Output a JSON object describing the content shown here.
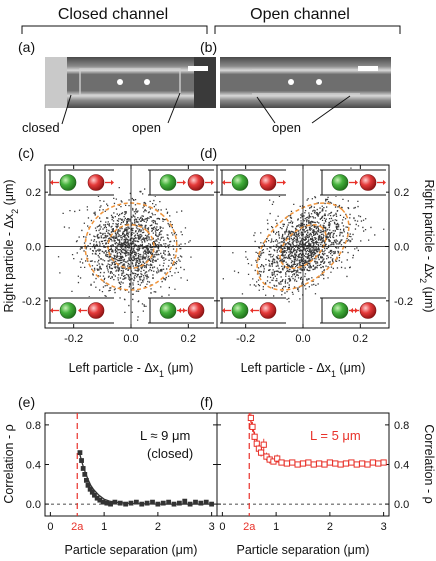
{
  "headers": {
    "left": "Closed channel",
    "right": "Open channel"
  },
  "panel_labels": {
    "a": "(a)",
    "b": "(b)",
    "c": "(c)",
    "d": "(d)",
    "e": "(e)",
    "f": "(f)"
  },
  "image_labels": {
    "closed": "closed",
    "open_a": "open",
    "open_b": "open"
  },
  "colors": {
    "scatter": "#3a3a3a",
    "contour": "#f0943a",
    "closed_data": "#333333",
    "open_data": "#e8322a",
    "dashed_marker": "#e8322a",
    "green_particle": "#43b03b",
    "red_particle": "#e53b3b",
    "arrow": "#e8322a"
  },
  "chart_data": [
    {
      "id": "c",
      "type": "scatter",
      "title": "",
      "xlabel": "Left particle - Δx",
      "xlabel_sub": "1",
      "xlabel_unit": " (μm)",
      "ylabel": "Right particle - Δx",
      "ylabel_sub": "2",
      "ylabel_unit": " (μm)",
      "xlim": [
        -0.3,
        0.3
      ],
      "ylim": [
        -0.3,
        0.3
      ],
      "xticks": [
        -0.2,
        0.0,
        0.2
      ],
      "yticks": [
        -0.2,
        0.0,
        0.2
      ],
      "xtick_labels": [
        "-0.2",
        "0.0",
        "0.2"
      ],
      "ytick_labels": [
        "-0.2",
        "0.0",
        "0.2"
      ],
      "point_count": 1500,
      "std": 0.08,
      "correlation": 0.0,
      "contours_std": [
        1,
        2
      ],
      "insets": [
        "top-left",
        "top-right",
        "bottom-left",
        "bottom-right"
      ]
    },
    {
      "id": "d",
      "type": "scatter",
      "title": "",
      "xlabel": "Left particle - Δx",
      "xlabel_sub": "1",
      "xlabel_unit": " (μm)",
      "ylabel": "Right particle - Δx",
      "ylabel_sub": "2",
      "ylabel_unit": " (μm)",
      "xlim": [
        -0.3,
        0.3
      ],
      "ylim": [
        -0.3,
        0.3
      ],
      "xticks": [
        -0.2,
        0.0,
        0.2
      ],
      "yticks": [
        -0.2,
        0.0,
        0.2
      ],
      "xtick_labels": [
        "-0.2",
        "0.0",
        "0.2"
      ],
      "ytick_labels": [
        "-0.2",
        "0.0",
        "0.2"
      ],
      "point_count": 1500,
      "std": 0.08,
      "correlation": 0.45,
      "contours_std": [
        1,
        2
      ],
      "insets": [
        "top-left",
        "top-right",
        "bottom-left",
        "bottom-right"
      ]
    },
    {
      "id": "e",
      "type": "line",
      "title": "",
      "xlabel": "Particle separation (μm)",
      "ylabel": "Correlation - ρ",
      "xlim": [
        -0.1,
        3.1
      ],
      "ylim": [
        -0.12,
        0.92
      ],
      "xticks": [
        0,
        1,
        2,
        3
      ],
      "xtick_labels": [
        "0",
        "1",
        "2",
        "3"
      ],
      "yticks": [
        0.0,
        0.4,
        0.8
      ],
      "ytick_labels": [
        "0.0",
        "0.4",
        "0.8"
      ],
      "vline_x": 0.5,
      "vline_label": "2a",
      "annotation": [
        "L ≈ 9 μm",
        "(closed)"
      ],
      "x": [
        0.55,
        0.58,
        0.61,
        0.64,
        0.67,
        0.7,
        0.74,
        0.78,
        0.82,
        0.87,
        0.92,
        0.98,
        1.05,
        1.12,
        1.2,
        1.3,
        1.4,
        1.5,
        1.6,
        1.7,
        1.8,
        1.9,
        2.0,
        2.1,
        2.2,
        2.3,
        2.4,
        2.5,
        2.6,
        2.7,
        2.8,
        2.9,
        3.0
      ],
      "y": [
        0.52,
        0.44,
        0.36,
        0.3,
        0.24,
        0.19,
        0.15,
        0.12,
        0.09,
        0.06,
        0.04,
        0.02,
        0.01,
        0.0,
        0.02,
        0.01,
        0.0,
        0.01,
        0.02,
        0.0,
        0.01,
        0.02,
        0.0,
        0.01,
        0.02,
        0.0,
        0.01,
        0.03,
        0.0,
        0.02,
        0.01,
        0.02,
        0.0
      ],
      "fit_x": [
        0.55,
        0.6,
        0.65,
        0.7,
        0.75,
        0.8,
        0.9,
        1.0,
        1.1,
        1.2,
        1.4,
        1.6,
        2.0,
        2.5,
        3.0
      ],
      "fit_y": [
        0.5,
        0.4,
        0.32,
        0.25,
        0.19,
        0.15,
        0.09,
        0.05,
        0.03,
        0.02,
        0.01,
        0.005,
        0.0,
        0.0,
        0.0
      ]
    },
    {
      "id": "f",
      "type": "line",
      "title": "",
      "xlabel": "Particle separation (μm)",
      "ylabel": "Correlation - ρ",
      "xlim": [
        -0.1,
        3.1
      ],
      "ylim": [
        -0.12,
        0.92
      ],
      "xticks": [
        0,
        1,
        2,
        3
      ],
      "xtick_labels": [
        "0",
        "1",
        "2",
        "3"
      ],
      "yticks": [
        0.0,
        0.4,
        0.8
      ],
      "ytick_labels": [
        "0.0",
        "0.4",
        "0.8"
      ],
      "vline_x": 0.5,
      "vline_label": "2a",
      "annotation": [
        "L = 5 μm"
      ],
      "x": [
        0.53,
        0.56,
        0.6,
        0.64,
        0.68,
        0.72,
        0.77,
        0.82,
        0.88,
        0.95,
        1.02,
        1.1,
        1.2,
        1.3,
        1.4,
        1.5,
        1.6,
        1.7,
        1.8,
        1.9,
        2.0,
        2.1,
        2.2,
        2.3,
        2.4,
        2.5,
        2.6,
        2.7,
        2.8,
        2.9,
        3.0
      ],
      "y": [
        0.87,
        0.78,
        0.68,
        0.61,
        0.56,
        0.52,
        0.6,
        0.48,
        0.45,
        0.43,
        0.46,
        0.42,
        0.41,
        0.42,
        0.4,
        0.41,
        0.42,
        0.4,
        0.41,
        0.4,
        0.42,
        0.41,
        0.4,
        0.41,
        0.42,
        0.4,
        0.41,
        0.4,
        0.42,
        0.41,
        0.42
      ],
      "yerr": [
        0.05,
        0.05,
        0.05,
        0.04,
        0.04,
        0.04,
        0.06,
        0.04,
        0.04,
        0.03,
        0.04,
        0.03,
        0.03,
        0.03,
        0.03,
        0.03,
        0.03,
        0.03,
        0.03,
        0.03,
        0.03,
        0.03,
        0.03,
        0.03,
        0.03,
        0.03,
        0.03,
        0.03,
        0.03,
        0.03,
        0.03
      ],
      "fit_x": [
        0.52,
        0.6,
        0.7,
        0.8,
        0.9,
        1.0,
        1.2,
        1.5,
        2.0,
        2.5,
        3.0
      ],
      "fit_y": [
        0.86,
        0.7,
        0.57,
        0.49,
        0.45,
        0.43,
        0.41,
        0.41,
        0.41,
        0.41,
        0.41
      ]
    }
  ]
}
